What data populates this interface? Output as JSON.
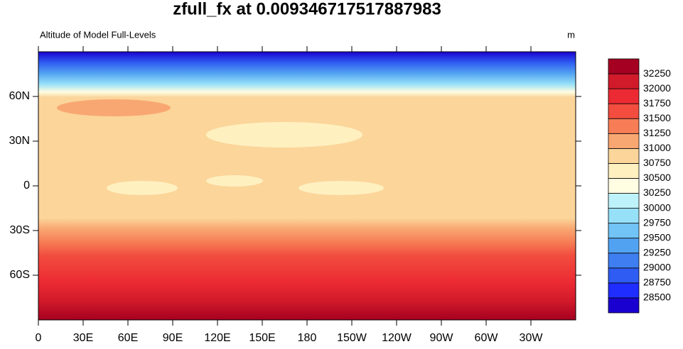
{
  "title": "zfull_fx at 0.009346717517887983",
  "subtitle": "Altitude of Model Full-Levels",
  "units": "m",
  "lon_labels": [
    "0",
    "30E",
    "60E",
    "90E",
    "120E",
    "150E",
    "180",
    "150W",
    "120W",
    "90W",
    "60W",
    "30W"
  ],
  "lat_labels": [
    "60N",
    "30N",
    "0",
    "30S",
    "60S"
  ],
  "colorbar": {
    "levels": [
      28500,
      28750,
      29000,
      29250,
      29500,
      29750,
      30000,
      30250,
      30500,
      30750,
      31000,
      31250,
      31500,
      31750,
      32000,
      32250
    ],
    "colors": [
      "#1a00d0",
      "#1f2dff",
      "#2f5cf2",
      "#3e7ef0",
      "#52a2f2",
      "#72c4f6",
      "#96e0f8",
      "#bdf2fa",
      "#fffde2",
      "#fff0c0",
      "#fbd59a",
      "#f9a772",
      "#f67d55",
      "#f24d3f",
      "#ec2a33",
      "#d11a2a",
      "#a50021"
    ]
  }
}
